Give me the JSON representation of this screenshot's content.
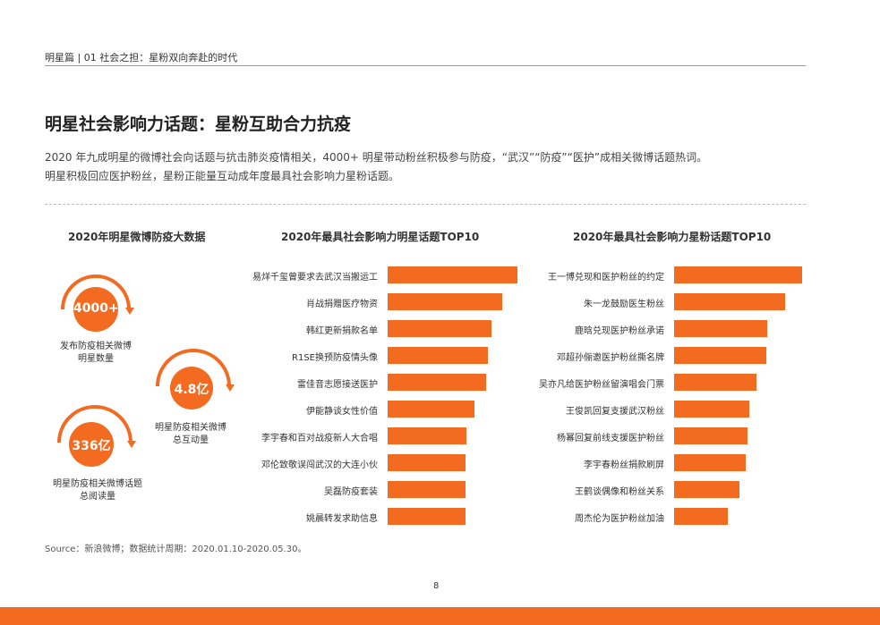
{
  "header": {
    "breadcrumb": "明星篇 | 01  社会之担：星粉双向奔赴的时代"
  },
  "page_title": "明星社会影响力话题：星粉互助合力抗疫",
  "intro": {
    "line1": "2020 年九成明星的微博社会向话题与抗击肺炎疫情相关，4000+ 明星带动粉丝积极参与防疫，“武汉”“防疫”“医护”成相关微博话题热词。",
    "line2": "明星积极回应医护粉丝，星粉正能量互动成年度最具社会影响力星粉话题。"
  },
  "colors": {
    "accent": "#f26b21"
  },
  "stats_section": {
    "title": "2020年明星微博防疫大数据",
    "items": [
      {
        "value": "4000+",
        "label_line1": "发布防疫相关微博",
        "label_line2": "明星数量"
      },
      {
        "value": "4.8亿",
        "label_line1": "明星防疫相关微博",
        "label_line2": "总互动量"
      },
      {
        "value": "336亿",
        "label_line1": "明星防疫相关微博话题",
        "label_line2": "总阅读量"
      }
    ]
  },
  "chart_data": [
    {
      "type": "bar",
      "orientation": "horizontal",
      "title": "2020年最具社会影响力明星话题TOP10",
      "categories": [
        "易烊千玺曾要求去武汉当搬运工",
        "肖战捐赠医疗物资",
        "韩红更新捐款名单",
        "R1SE换预防疫情头像",
        "雷佳音志愿接送医护",
        "伊能静谈女性价值",
        "李宇春和百对战疫新人大合唱",
        "邓伦致敬误闯武汉的大连小伙",
        "吴磊防疫套装",
        "姚晨转发求助信息"
      ],
      "values": [
        100,
        88,
        80,
        77,
        76,
        67,
        61,
        60,
        60,
        60
      ],
      "axes_visible": false,
      "grid": false
    },
    {
      "type": "bar",
      "orientation": "horizontal",
      "title": "2020年最具社会影响力星粉话题TOP10",
      "categories": [
        "王一博兑现和医护粉丝的约定",
        "朱一龙鼓励医生粉丝",
        "鹿晗兑现医护粉丝承诺",
        "邓超孙俪邀医护粉丝撕名牌",
        "吴亦凡给医护粉丝留演唱会门票",
        "王俊凯回复支援武汉粉丝",
        "杨幂回复前线支援医护粉丝",
        "李宇春粉丝捐款刷屏",
        "王鹤谈偶像和粉丝关系",
        "周杰伦为医护粉丝加油"
      ],
      "values": [
        100,
        87,
        73,
        72,
        64,
        59,
        57,
        56,
        51,
        42
      ],
      "axes_visible": false,
      "grid": false
    }
  ],
  "footer": {
    "source": "Source：新浪微博；数据统计周期：2020.01.10-2020.05.30。",
    "page_number": "8"
  }
}
